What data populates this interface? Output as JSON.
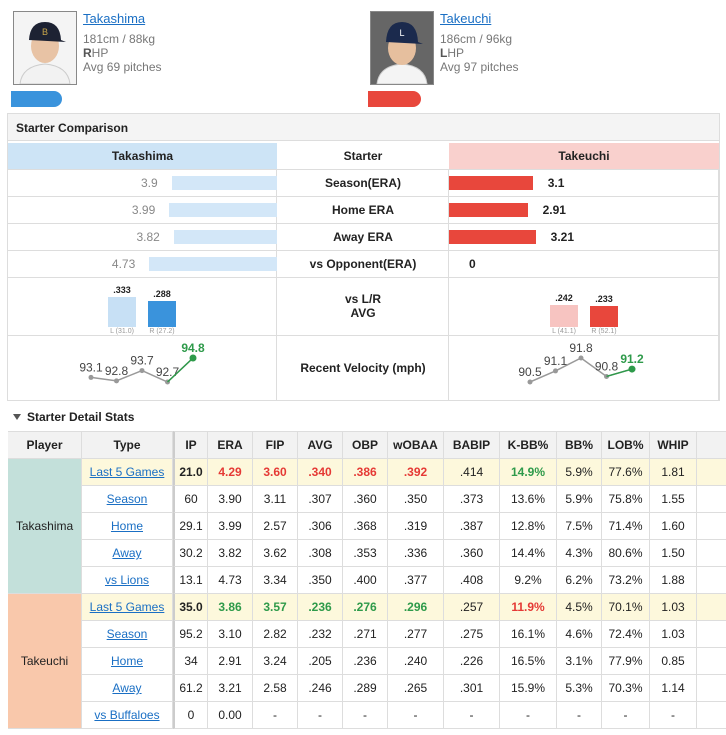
{
  "players": [
    {
      "name": "Takashima",
      "size": "181cm / 88kg",
      "hand": "R",
      "hand_rest": "HP",
      "pitches": "Avg 69 pitches"
    },
    {
      "name": "Takeuchi",
      "size": "186cm / 96kg",
      "hand": "L",
      "hand_rest": "HP",
      "pitches": "Avg 97 pitches"
    }
  ],
  "comparison": {
    "title": "Starter Comparison",
    "headers": [
      "Takashima",
      "Starter",
      "Takeuchi"
    ],
    "rows": [
      {
        "label": "Season(ERA)",
        "left": 3.9,
        "right": 3.1
      },
      {
        "label": "Home ERA",
        "left": 3.99,
        "right": 2.91
      },
      {
        "label": "Away ERA",
        "left": 3.82,
        "right": 3.21
      },
      {
        "label": "vs Opponent(ERA)",
        "left": 4.73,
        "right": 0
      }
    ],
    "lr": {
      "label": [
        "vs L/R",
        "AVG"
      ],
      "left": [
        {
          "side": "L (31.0)",
          "avg": {
            "value": 0.333,
            "label": ".333"
          }
        },
        {
          "side": "R (27.2)",
          "avg": {
            "value": 0.288,
            "label": ".288"
          }
        }
      ],
      "right": [
        {
          "side": "L (41.1)",
          "avg": {
            "value": 0.242,
            "label": ".242"
          }
        },
        {
          "side": "R (52.1)",
          "avg": {
            "value": 0.233,
            "label": ".233"
          }
        }
      ]
    },
    "velocity": {
      "label": "Recent Velocity (mph)",
      "left": [
        93.1,
        92.8,
        93.7,
        92.7,
        94.8
      ],
      "right": [
        90.5,
        91.1,
        91.8,
        90.8,
        91.2
      ]
    }
  },
  "detail": {
    "title": "Starter Detail Stats",
    "headers": [
      "Player",
      "Type",
      "IP",
      "ERA",
      "FIP",
      "AVG",
      "OBP",
      "wOBAA",
      "BABIP",
      "K-BB%",
      "BB%",
      "LOB%",
      "WHIP"
    ],
    "groups": [
      {
        "player": "Takashima",
        "color": "#c3e0da",
        "rows": [
          {
            "type": "Last 5 Games",
            "highlight": true,
            "cells": [
              "21.0",
              {
                "text": "4.29",
                "tone": "red"
              },
              {
                "text": "3.60",
                "tone": "red"
              },
              {
                "text": ".340",
                "tone": "red"
              },
              {
                "text": ".386",
                "tone": "red"
              },
              {
                "text": ".392",
                "tone": "red"
              },
              ".414",
              {
                "text": "14.9%",
                "tone": "green"
              },
              "5.9%",
              "77.6%",
              "1.81"
            ]
          },
          {
            "type": "Season",
            "cells": [
              "60",
              "3.90",
              "3.11",
              ".307",
              ".360",
              ".350",
              ".373",
              "13.6%",
              "5.9%",
              "75.8%",
              "1.55"
            ]
          },
          {
            "type": "Home",
            "cells": [
              "29.1",
              "3.99",
              "2.57",
              ".306",
              ".368",
              ".319",
              ".387",
              "12.8%",
              "7.5%",
              "71.4%",
              "1.60"
            ]
          },
          {
            "type": "Away",
            "cells": [
              "30.2",
              "3.82",
              "3.62",
              ".308",
              ".353",
              ".336",
              ".360",
              "14.4%",
              "4.3%",
              "80.6%",
              "1.50"
            ]
          },
          {
            "type": "vs Lions",
            "cells": [
              "13.1",
              "4.73",
              "3.34",
              ".350",
              ".400",
              ".377",
              ".408",
              "9.2%",
              "6.2%",
              "73.2%",
              "1.88"
            ]
          }
        ]
      },
      {
        "player": "Takeuchi",
        "color": "#f9c8ab",
        "rows": [
          {
            "type": "Last 5 Games",
            "highlight": true,
            "cells": [
              "35.0",
              {
                "text": "3.86",
                "tone": "green"
              },
              {
                "text": "3.57",
                "tone": "green"
              },
              {
                "text": ".236",
                "tone": "green"
              },
              {
                "text": ".276",
                "tone": "green"
              },
              {
                "text": ".296",
                "tone": "green"
              },
              ".257",
              {
                "text": "11.9%",
                "tone": "red"
              },
              "4.5%",
              "70.1%",
              "1.03"
            ]
          },
          {
            "type": "Season",
            "cells": [
              "95.2",
              "3.10",
              "2.82",
              ".232",
              ".271",
              ".277",
              ".275",
              "16.1%",
              "4.6%",
              "72.4%",
              "1.03"
            ]
          },
          {
            "type": "Home",
            "cells": [
              "34",
              "2.91",
              "3.24",
              ".205",
              ".236",
              ".240",
              ".226",
              "16.5%",
              "3.1%",
              "77.9%",
              "0.85"
            ]
          },
          {
            "type": "Away",
            "cells": [
              "61.2",
              "3.21",
              "2.58",
              ".246",
              ".289",
              ".265",
              ".301",
              "15.9%",
              "5.3%",
              "70.3%",
              "1.14"
            ]
          },
          {
            "type": "vs Buffaloes",
            "cells": [
              "0",
              "0.00",
              "-",
              "-",
              "-",
              "-",
              "-",
              "-",
              "-",
              "-",
              "-"
            ]
          }
        ]
      }
    ]
  }
}
